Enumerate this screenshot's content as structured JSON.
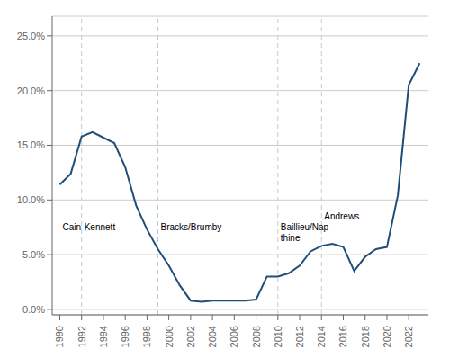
{
  "chart_data": {
    "type": "line",
    "x": [
      1990,
      1991,
      1992,
      1993,
      1994,
      1995,
      1996,
      1997,
      1998,
      1999,
      2000,
      2001,
      2002,
      2003,
      2004,
      2005,
      2006,
      2007,
      2008,
      2009,
      2010,
      2011,
      2012,
      2013,
      2014,
      2015,
      2016,
      2017,
      2018,
      2019,
      2020,
      2021,
      2022,
      2023
    ],
    "values": [
      0.114,
      0.124,
      0.158,
      0.162,
      0.157,
      0.152,
      0.13,
      0.095,
      0.073,
      0.055,
      0.04,
      0.022,
      0.008,
      0.007,
      0.008,
      0.008,
      0.008,
      0.008,
      0.009,
      0.03,
      0.03,
      0.033,
      0.04,
      0.053,
      0.058,
      0.06,
      0.057,
      0.035,
      0.048,
      0.055,
      0.057,
      0.104,
      0.205,
      0.225
    ],
    "color": "#1f4e79",
    "xlim": [
      1989.3,
      2023.8
    ],
    "xticks": [
      1990,
      1992,
      1994,
      1996,
      1998,
      2000,
      2002,
      2004,
      2006,
      2008,
      2010,
      2012,
      2014,
      2016,
      2018,
      2020,
      2022
    ],
    "ylim": [
      -0.005,
      0.268
    ],
    "yticks": [
      {
        "value": 0.0,
        "label": "0.0%"
      },
      {
        "value": 0.05,
        "label": "5.0%"
      },
      {
        "value": 0.1,
        "label": "10.0%"
      },
      {
        "value": 0.15,
        "label": "15.0%"
      },
      {
        "value": 0.2,
        "label": "20.0%"
      },
      {
        "value": 0.25,
        "label": "25.0%"
      }
    ],
    "grid": true,
    "vlines": [
      {
        "x": 1992,
        "color": "#b8cdd8",
        "line_style": "dashed"
      },
      {
        "x": 1999,
        "color": "#b8cdd8",
        "line_style": "dashed"
      },
      {
        "x": 2010,
        "color": "#b8cdd8",
        "line_style": "dashed"
      },
      {
        "x": 2014,
        "color": "#b8cdd8",
        "line_style": "dashed"
      }
    ],
    "annotations": [
      {
        "text": "Cain",
        "x": 1990,
        "y": 0.078
      },
      {
        "text": "Kennett",
        "x": 1992,
        "y": 0.078
      },
      {
        "text": "Bracks/Brumby",
        "x": 1999,
        "y": 0.078
      },
      {
        "text": "Baillieu/Nap\nthine",
        "x": 2010,
        "y": 0.078
      },
      {
        "text": "Andrews",
        "x": 2014,
        "y": 0.078
      }
    ]
  }
}
